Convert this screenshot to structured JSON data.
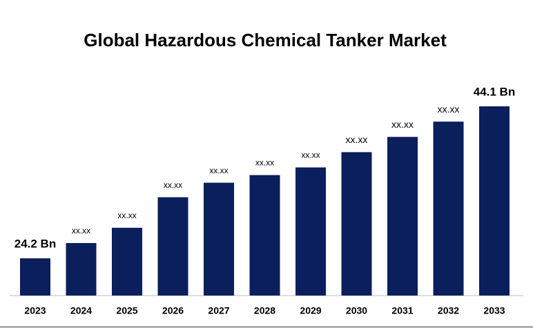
{
  "chart_data": {
    "type": "bar",
    "title": "Global Hazardous Chemical Tanker Market",
    "categories": [
      "2023",
      "2024",
      "2025",
      "2026",
      "2027",
      "2028",
      "2029",
      "2030",
      "2031",
      "2032",
      "2033"
    ],
    "values": [
      24.2,
      26.2,
      28.2,
      32.2,
      34.1,
      35.1,
      36.1,
      38.1,
      40.1,
      42.1,
      44.1
    ],
    "value_labels": [
      "24.2 Bn",
      "xx.xx",
      "xx.xx",
      "xx.xx",
      "xx.xx",
      "xx.xx",
      "xx.xx",
      "xx.xx",
      "xx.xx",
      "xx.xx",
      "44.1 Bn"
    ],
    "color": "#0b1f5c"
  }
}
